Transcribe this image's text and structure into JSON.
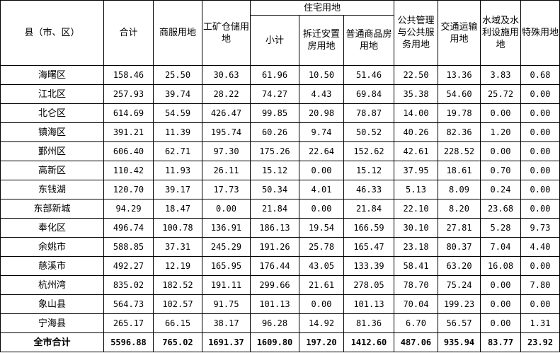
{
  "headers": {
    "county": "县（市、区）",
    "total": "合计",
    "commercial": "商服用地",
    "industrial": "工矿仓储用地",
    "residential": "住宅用地",
    "res_subtotal": "小计",
    "res_resettlement": "拆迁安置房用地",
    "res_commodity": "普通商品房用地",
    "public": "公共管理与公共服务用地",
    "transport": "交通运输用地",
    "water": "水域及水利设施用地",
    "special": "特殊用地"
  },
  "rows": [
    [
      "海曙区",
      "158.46",
      "25.50",
      "30.63",
      "61.96",
      "10.50",
      "51.46",
      "22.50",
      "13.36",
      "3.83",
      "0.68"
    ],
    [
      "江北区",
      "257.93",
      "39.74",
      "28.22",
      "74.27",
      "4.43",
      "69.84",
      "35.38",
      "54.60",
      "25.72",
      "0.00"
    ],
    [
      "北仑区",
      "614.69",
      "54.59",
      "426.47",
      "99.85",
      "20.98",
      "78.87",
      "14.00",
      "19.78",
      "0.00",
      "0.00"
    ],
    [
      "镇海区",
      "391.21",
      "11.39",
      "195.74",
      "60.26",
      "9.74",
      "50.52",
      "40.26",
      "82.36",
      "1.20",
      "0.00"
    ],
    [
      "鄞州区",
      "606.40",
      "62.71",
      "97.30",
      "175.26",
      "22.64",
      "152.62",
      "42.61",
      "228.52",
      "0.00",
      "0.00"
    ],
    [
      "高新区",
      "110.42",
      "11.93",
      "26.11",
      "15.12",
      "0.00",
      "15.12",
      "37.95",
      "18.61",
      "0.70",
      "0.00"
    ],
    [
      "东钱湖",
      "120.70",
      "39.17",
      "17.73",
      "50.34",
      "4.01",
      "46.33",
      "5.13",
      "8.09",
      "0.24",
      "0.00"
    ],
    [
      "东部新城",
      "94.29",
      "18.47",
      "0.00",
      "21.84",
      "0.00",
      "21.84",
      "22.10",
      "8.20",
      "23.68",
      "0.00"
    ],
    [
      "奉化区",
      "496.74",
      "100.78",
      "136.91",
      "186.13",
      "19.54",
      "166.59",
      "30.10",
      "27.81",
      "5.28",
      "9.73"
    ],
    [
      "余姚市",
      "588.85",
      "37.31",
      "245.29",
      "191.26",
      "25.78",
      "165.47",
      "23.18",
      "80.37",
      "7.04",
      "4.40"
    ],
    [
      "慈溪市",
      "492.27",
      "12.19",
      "165.95",
      "176.44",
      "43.05",
      "133.39",
      "58.41",
      "63.20",
      "16.08",
      "0.00"
    ],
    [
      "杭州湾",
      "835.02",
      "182.52",
      "191.11",
      "299.66",
      "21.61",
      "278.05",
      "78.70",
      "75.24",
      "0.00",
      "7.80"
    ],
    [
      "象山县",
      "564.73",
      "102.57",
      "91.75",
      "101.13",
      "0.00",
      "101.13",
      "70.04",
      "199.23",
      "0.00",
      "0.00"
    ],
    [
      "宁海县",
      "265.17",
      "66.15",
      "38.17",
      "96.28",
      "14.92",
      "81.36",
      "6.70",
      "56.57",
      "0.00",
      "1.31"
    ]
  ],
  "total_row": [
    "全市合计",
    "5596.88",
    "765.02",
    "1691.37",
    "1609.80",
    "197.20",
    "1412.60",
    "487.06",
    "935.94",
    "83.77",
    "23.92"
  ]
}
